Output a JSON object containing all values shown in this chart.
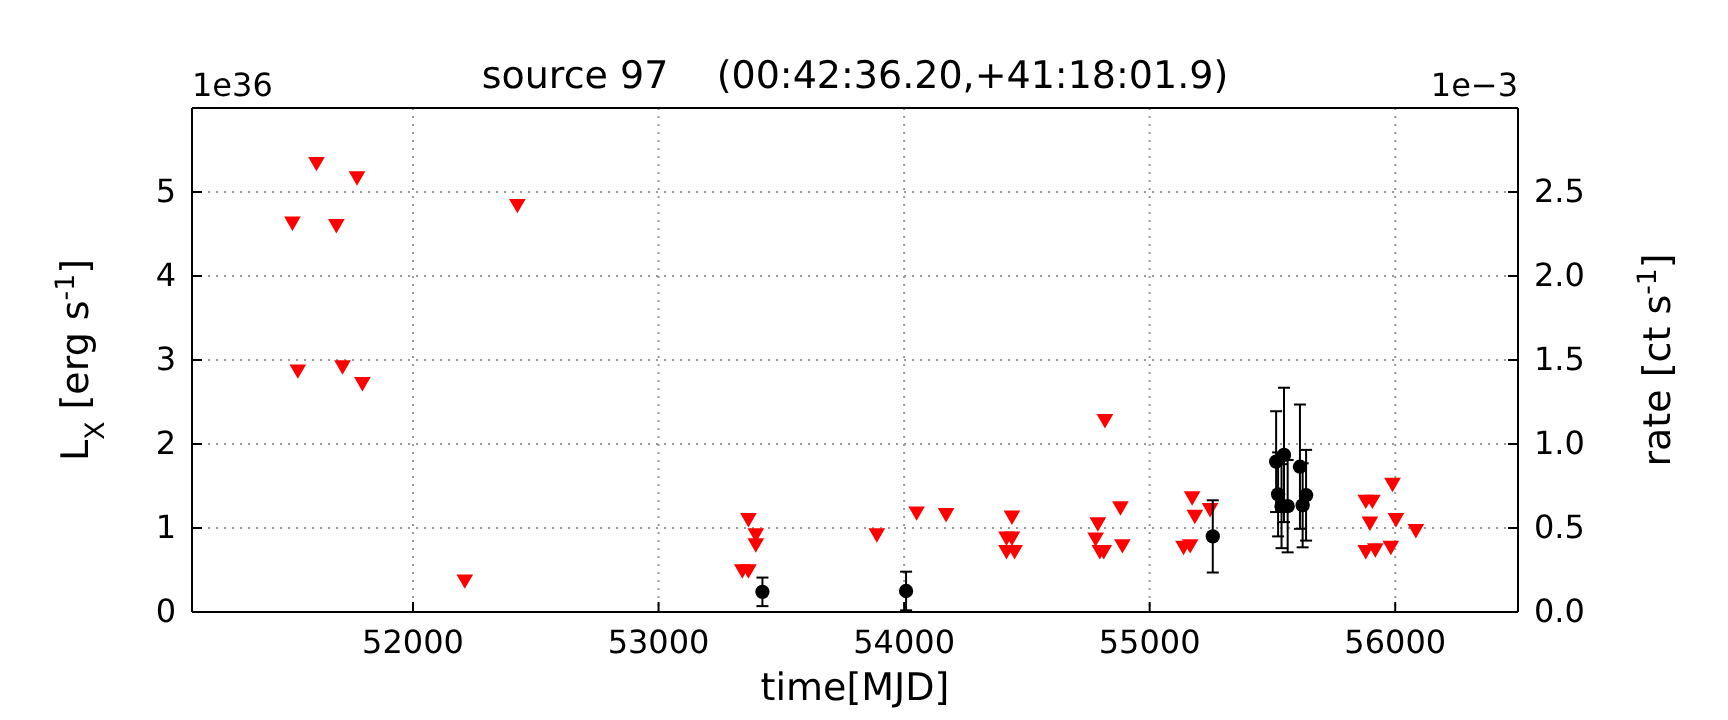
{
  "chart_data": {
    "type": "scatter",
    "title": "source 97    (00:42:36.20,+41:18:01.9)",
    "xlabel": "time[MJD]",
    "ylabel": "L$_{X}$ [erg s$^{-1}$]",
    "y2label": "rate [ct s$^{-1}$]",
    "annotations": [
      "1e36",
      "1e−3"
    ],
    "xlim": [
      51100,
      56500
    ],
    "xticks": [
      52000,
      53000,
      54000,
      55000,
      56000
    ],
    "ylim": [
      0,
      6
    ],
    "yticks": [
      0,
      1,
      2,
      3,
      4,
      5
    ],
    "y2lim": [
      0,
      3
    ],
    "y2ticks": [
      {
        "value": 0,
        "label": "0.0"
      },
      {
        "value": 0.5,
        "label": "0.5"
      },
      {
        "value": 1,
        "label": "1.0"
      },
      {
        "value": 1.5,
        "label": "1.5"
      },
      {
        "value": 2,
        "label": "2.0"
      },
      {
        "value": 2.5,
        "label": "2.5"
      }
    ],
    "grid": true,
    "series": [
      {
        "color": "#ff0000",
        "marker": "triangle",
        "x": [
          51509,
          51607,
          51688,
          51772,
          51531,
          51713,
          51794,
          52425,
          52211,
          53366,
          53396,
          53396,
          53341,
          53366,
          53889,
          54051,
          54171,
          54417,
          54439,
          54417,
          54450,
          54439,
          54789,
          54780,
          54797,
          54813,
          54818,
          54881,
          54889,
          55138,
          55165,
          55173,
          55184,
          55246,
          55880,
          55919,
          55880,
          55907,
          55897,
          55982,
          55989,
          56003,
          56084
        ],
        "values": [
          4.65,
          5.36,
          4.62,
          5.19,
          2.89,
          2.94,
          2.74,
          4.86,
          0.39,
          1.12,
          0.94,
          0.82,
          0.51,
          0.51,
          0.94,
          1.2,
          1.18,
          0.9,
          0.9,
          0.74,
          0.74,
          1.15,
          1.07,
          0.89,
          0.74,
          0.74,
          2.3,
          1.26,
          0.81,
          0.79,
          0.81,
          1.38,
          1.16,
          1.24,
          0.74,
          0.76,
          1.34,
          1.34,
          1.08,
          0.79,
          1.54,
          1.12,
          0.99
        ]
      },
      {
        "color": "#000000",
        "marker": "circle",
        "x": [
          53423,
          54008,
          55257,
          55515,
          55523,
          55537,
          55547,
          55562,
          55612,
          55623,
          55637
        ],
        "values": [
          0.24,
          0.25,
          0.9,
          1.79,
          1.4,
          1.26,
          1.87,
          1.26,
          1.73,
          1.27,
          1.39
        ],
        "errors": [
          0.17,
          0.23,
          0.43,
          0.6,
          0.5,
          0.5,
          0.8,
          0.55,
          0.74,
          0.5,
          0.54
        ]
      }
    ]
  }
}
